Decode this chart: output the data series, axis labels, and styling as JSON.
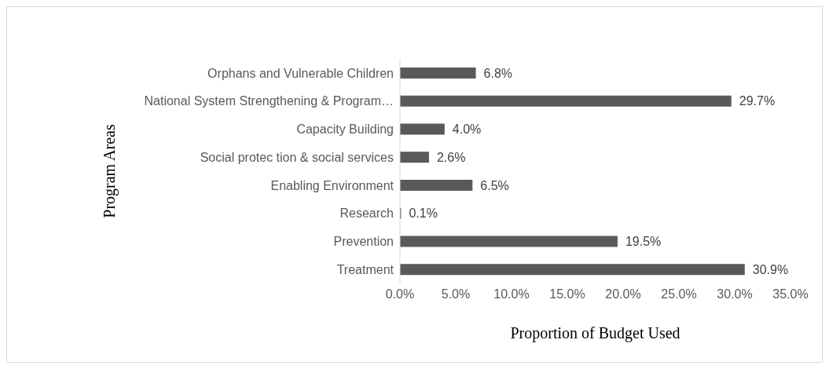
{
  "chart_data": {
    "type": "bar",
    "orientation": "horizontal",
    "xlabel": "Proportion of Budget Used",
    "ylabel": "Program Areas",
    "categories": [
      "Orphans and Vulnerable Children",
      "National System Strengthening  & Program…",
      "Capacity Building ",
      "Social protec tion & social services",
      "Enabling Environment ",
      "Research",
      "Prevention",
      "Treatment"
    ],
    "values": [
      6.8,
      29.7,
      4.0,
      2.6,
      6.5,
      0.1,
      19.5,
      30.9
    ],
    "value_labels": [
      "6.8%",
      "29.7%",
      "4.0%",
      "2.6%",
      "6.5%",
      "0.1%",
      "19.5%",
      "30.9%"
    ],
    "color": "#595959",
    "xlim": [
      0,
      35
    ],
    "xticks": [
      {
        "value": 0,
        "label": "0.0%"
      },
      {
        "value": 5,
        "label": "5.0%"
      },
      {
        "value": 10,
        "label": "10.0%"
      },
      {
        "value": 15,
        "label": "15.0%"
      },
      {
        "value": 20,
        "label": "20.0%"
      },
      {
        "value": 25,
        "label": "25.0%"
      },
      {
        "value": 30,
        "label": "30.0%"
      },
      {
        "value": 35,
        "label": "35.0%"
      }
    ],
    "grid": false,
    "legend": false
  }
}
